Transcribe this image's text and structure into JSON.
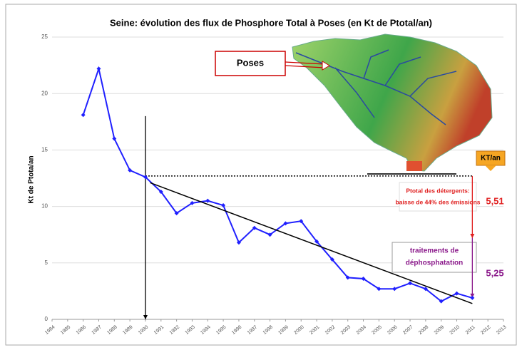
{
  "chart_data": {
    "type": "line",
    "title": "Seine: évolution des flux de Phosphore Total à Poses (en Kt de Ptotal/an)",
    "y_label": "Kt de Ptota/an",
    "x": [
      1986,
      1987,
      1988,
      1989,
      1990,
      1991,
      1992,
      1993,
      1994,
      1995,
      1996,
      1997,
      1998,
      1999,
      2000,
      2001,
      2002,
      2003,
      2004,
      2005,
      2006,
      2007,
      2008,
      2009,
      2010,
      2011
    ],
    "series": [
      {
        "color": "#2020ff",
        "values": [
          18.1,
          22.2,
          16.0,
          13.2,
          12.6,
          11.3,
          9.4,
          10.3,
          10.5,
          10.1,
          6.8,
          8.1,
          7.5,
          8.5,
          8.7,
          6.9,
          5.3,
          3.7,
          3.6,
          2.7,
          2.7,
          3.2,
          2.7,
          1.6,
          2.3,
          1.9
        ]
      }
    ],
    "trend_line": {
      "x": [
        1990.3,
        2011
      ],
      "values": [
        12.1,
        1.4
      ],
      "color": "#000000"
    },
    "dotted_line": {
      "x": [
        1990,
        2011
      ],
      "values": [
        12.7,
        12.7
      ],
      "color": "#000000"
    },
    "arrows": [
      {
        "x": 1990,
        "values": [
          18,
          0
        ],
        "color": "#000000"
      },
      {
        "x": 2011,
        "values": [
          12.7,
          7.2
        ],
        "color": "#e02020"
      },
      {
        "x": 2011,
        "values": [
          7.2,
          1.9
        ],
        "color": "#8b1a8b"
      }
    ],
    "xlim": [
      1984,
      2013
    ],
    "xticks": [
      1984,
      1985,
      1986,
      1987,
      1988,
      1989,
      1990,
      1991,
      1992,
      1993,
      1994,
      1995,
      1996,
      1997,
      1998,
      1999,
      2000,
      2001,
      2002,
      2003,
      2004,
      2005,
      2006,
      2007,
      2008,
      2009,
      2010,
      2011,
      2012,
      2013
    ],
    "ylim": [
      0,
      25
    ],
    "yticks": [
      0,
      5,
      10,
      15,
      20,
      25
    ],
    "grid": true,
    "annotations": {
      "poses": "Poses",
      "unit": "KT/an",
      "detergents": [
        "Ptotal des détergents:",
        "baisse de 44% des émissions"
      ],
      "traitements": [
        "traitements de",
        "déphosphatation"
      ],
      "delta_detergents": "5,51",
      "delta_traitements": "5,25"
    }
  }
}
